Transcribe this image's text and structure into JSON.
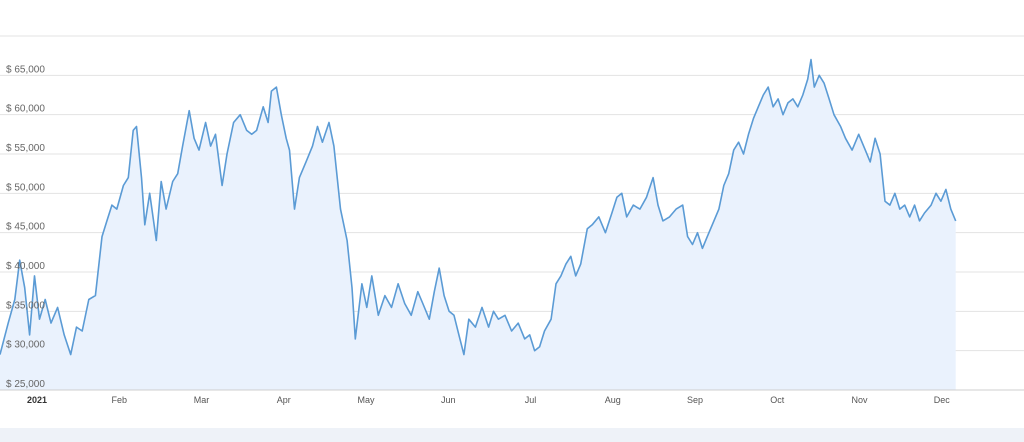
{
  "colors": {
    "line": "#5b9bd5",
    "area": "#eaf2fd",
    "grid": "#e3e3e3",
    "axis": "#cfcfcf",
    "navigator": "#eef2f8"
  },
  "chart_data": {
    "type": "area",
    "title": "",
    "xlabel": "",
    "ylabel": "",
    "xlim": [
      0,
      12.45
    ],
    "ylim": [
      25000,
      70000
    ],
    "grid": true,
    "y_ticks": [
      {
        "value": 25000,
        "label": "$ 25,000"
      },
      {
        "value": 30000,
        "label": "$ 30,000"
      },
      {
        "value": 35000,
        "label": "$ 35,000"
      },
      {
        "value": 40000,
        "label": "$ 40,000"
      },
      {
        "value": 45000,
        "label": "$ 45,000"
      },
      {
        "value": 50000,
        "label": "$ 50,000"
      },
      {
        "value": 55000,
        "label": "$ 55,000"
      },
      {
        "value": 60000,
        "label": "$ 60,000"
      },
      {
        "value": 65000,
        "label": "$ 65,000"
      }
    ],
    "x_ticks": [
      {
        "value": 0.45,
        "label": "2021",
        "bold": true
      },
      {
        "value": 1.45,
        "label": "Feb"
      },
      {
        "value": 2.45,
        "label": "Mar"
      },
      {
        "value": 3.45,
        "label": "Apr"
      },
      {
        "value": 4.45,
        "label": "May"
      },
      {
        "value": 5.45,
        "label": "Jun"
      },
      {
        "value": 6.45,
        "label": "Jul"
      },
      {
        "value": 7.45,
        "label": "Aug"
      },
      {
        "value": 8.45,
        "label": "Sep"
      },
      {
        "value": 9.45,
        "label": "Oct"
      },
      {
        "value": 10.45,
        "label": "Nov"
      },
      {
        "value": 11.45,
        "label": "Dec"
      }
    ],
    "series": [
      {
        "values": [
          [
            0.0,
            29500
          ],
          [
            0.1,
            33500
          ],
          [
            0.18,
            36500
          ],
          [
            0.24,
            41500
          ],
          [
            0.3,
            38000
          ],
          [
            0.36,
            32000
          ],
          [
            0.42,
            39500
          ],
          [
            0.48,
            34000
          ],
          [
            0.55,
            36500
          ],
          [
            0.62,
            33500
          ],
          [
            0.7,
            35500
          ],
          [
            0.78,
            32000
          ],
          [
            0.86,
            29500
          ],
          [
            0.93,
            33000
          ],
          [
            1.0,
            32500
          ],
          [
            1.08,
            36500
          ],
          [
            1.16,
            37000
          ],
          [
            1.24,
            44500
          ],
          [
            1.3,
            46500
          ],
          [
            1.36,
            48500
          ],
          [
            1.42,
            48000
          ],
          [
            1.5,
            51000
          ],
          [
            1.56,
            52000
          ],
          [
            1.62,
            58000
          ],
          [
            1.66,
            58500
          ],
          [
            1.72,
            52000
          ],
          [
            1.76,
            46000
          ],
          [
            1.82,
            50000
          ],
          [
            1.9,
            44000
          ],
          [
            1.96,
            51500
          ],
          [
            2.02,
            48000
          ],
          [
            2.1,
            51500
          ],
          [
            2.16,
            52500
          ],
          [
            2.22,
            56000
          ],
          [
            2.3,
            60500
          ],
          [
            2.36,
            57000
          ],
          [
            2.42,
            55500
          ],
          [
            2.5,
            59000
          ],
          [
            2.56,
            56000
          ],
          [
            2.62,
            57500
          ],
          [
            2.7,
            51000
          ],
          [
            2.76,
            55000
          ],
          [
            2.84,
            59000
          ],
          [
            2.92,
            60000
          ],
          [
            3.0,
            58000
          ],
          [
            3.06,
            57500
          ],
          [
            3.12,
            58000
          ],
          [
            3.2,
            61000
          ],
          [
            3.26,
            59000
          ],
          [
            3.3,
            63000
          ],
          [
            3.36,
            63500
          ],
          [
            3.42,
            60000
          ],
          [
            3.48,
            57000
          ],
          [
            3.52,
            55500
          ],
          [
            3.58,
            48000
          ],
          [
            3.64,
            52000
          ],
          [
            3.72,
            54000
          ],
          [
            3.8,
            56000
          ],
          [
            3.86,
            58500
          ],
          [
            3.92,
            56500
          ],
          [
            4.0,
            59000
          ],
          [
            4.06,
            56000
          ],
          [
            4.14,
            48000
          ],
          [
            4.22,
            44000
          ],
          [
            4.28,
            38000
          ],
          [
            4.32,
            31500
          ],
          [
            4.4,
            38500
          ],
          [
            4.46,
            35500
          ],
          [
            4.52,
            39500
          ],
          [
            4.6,
            34500
          ],
          [
            4.68,
            37000
          ],
          [
            4.76,
            35500
          ],
          [
            4.84,
            38500
          ],
          [
            4.92,
            36000
          ],
          [
            5.0,
            34500
          ],
          [
            5.08,
            37500
          ],
          [
            5.14,
            36000
          ],
          [
            5.22,
            34000
          ],
          [
            5.28,
            37500
          ],
          [
            5.34,
            40500
          ],
          [
            5.4,
            37000
          ],
          [
            5.46,
            35000
          ],
          [
            5.52,
            34500
          ],
          [
            5.58,
            32000
          ],
          [
            5.64,
            29500
          ],
          [
            5.7,
            34000
          ],
          [
            5.78,
            33000
          ],
          [
            5.86,
            35500
          ],
          [
            5.94,
            33000
          ],
          [
            6.0,
            35000
          ],
          [
            6.06,
            34000
          ],
          [
            6.14,
            34500
          ],
          [
            6.22,
            32500
          ],
          [
            6.3,
            33500
          ],
          [
            6.38,
            31500
          ],
          [
            6.44,
            32000
          ],
          [
            6.5,
            30000
          ],
          [
            6.56,
            30500
          ],
          [
            6.62,
            32500
          ],
          [
            6.7,
            34000
          ],
          [
            6.76,
            38500
          ],
          [
            6.82,
            39500
          ],
          [
            6.88,
            41000
          ],
          [
            6.94,
            42000
          ],
          [
            7.0,
            39500
          ],
          [
            7.06,
            41000
          ],
          [
            7.14,
            45500
          ],
          [
            7.2,
            46000
          ],
          [
            7.28,
            47000
          ],
          [
            7.36,
            45000
          ],
          [
            7.44,
            47500
          ],
          [
            7.5,
            49500
          ],
          [
            7.56,
            50000
          ],
          [
            7.62,
            47000
          ],
          [
            7.7,
            48500
          ],
          [
            7.78,
            48000
          ],
          [
            7.86,
            49500
          ],
          [
            7.94,
            52000
          ],
          [
            8.0,
            48500
          ],
          [
            8.06,
            46500
          ],
          [
            8.14,
            47000
          ],
          [
            8.22,
            48000
          ],
          [
            8.3,
            48500
          ],
          [
            8.36,
            44500
          ],
          [
            8.42,
            43500
          ],
          [
            8.48,
            45000
          ],
          [
            8.54,
            43000
          ],
          [
            8.6,
            44500
          ],
          [
            8.68,
            46500
          ],
          [
            8.74,
            48000
          ],
          [
            8.8,
            51000
          ],
          [
            8.86,
            52500
          ],
          [
            8.92,
            55500
          ],
          [
            8.98,
            56500
          ],
          [
            9.04,
            55000
          ],
          [
            9.1,
            57500
          ],
          [
            9.16,
            59500
          ],
          [
            9.22,
            61000
          ],
          [
            9.28,
            62500
          ],
          [
            9.34,
            63500
          ],
          [
            9.4,
            61000
          ],
          [
            9.46,
            62000
          ],
          [
            9.52,
            60000
          ],
          [
            9.58,
            61500
          ],
          [
            9.64,
            62000
          ],
          [
            9.7,
            61000
          ],
          [
            9.76,
            62500
          ],
          [
            9.82,
            64500
          ],
          [
            9.86,
            67000
          ],
          [
            9.9,
            63500
          ],
          [
            9.96,
            65000
          ],
          [
            10.02,
            64000
          ],
          [
            10.08,
            62000
          ],
          [
            10.14,
            60000
          ],
          [
            10.22,
            58500
          ],
          [
            10.28,
            57000
          ],
          [
            10.36,
            55500
          ],
          [
            10.44,
            57500
          ],
          [
            10.52,
            55500
          ],
          [
            10.58,
            54000
          ],
          [
            10.64,
            57000
          ],
          [
            10.7,
            55000
          ],
          [
            10.76,
            49000
          ],
          [
            10.82,
            48500
          ],
          [
            10.88,
            50000
          ],
          [
            10.94,
            48000
          ],
          [
            11.0,
            48500
          ],
          [
            11.06,
            47000
          ],
          [
            11.12,
            48500
          ],
          [
            11.18,
            46500
          ],
          [
            11.24,
            47500
          ],
          [
            11.32,
            48500
          ],
          [
            11.38,
            50000
          ],
          [
            11.44,
            49000
          ],
          [
            11.5,
            50500
          ],
          [
            11.56,
            48000
          ],
          [
            11.62,
            46500
          ]
        ]
      }
    ]
  }
}
